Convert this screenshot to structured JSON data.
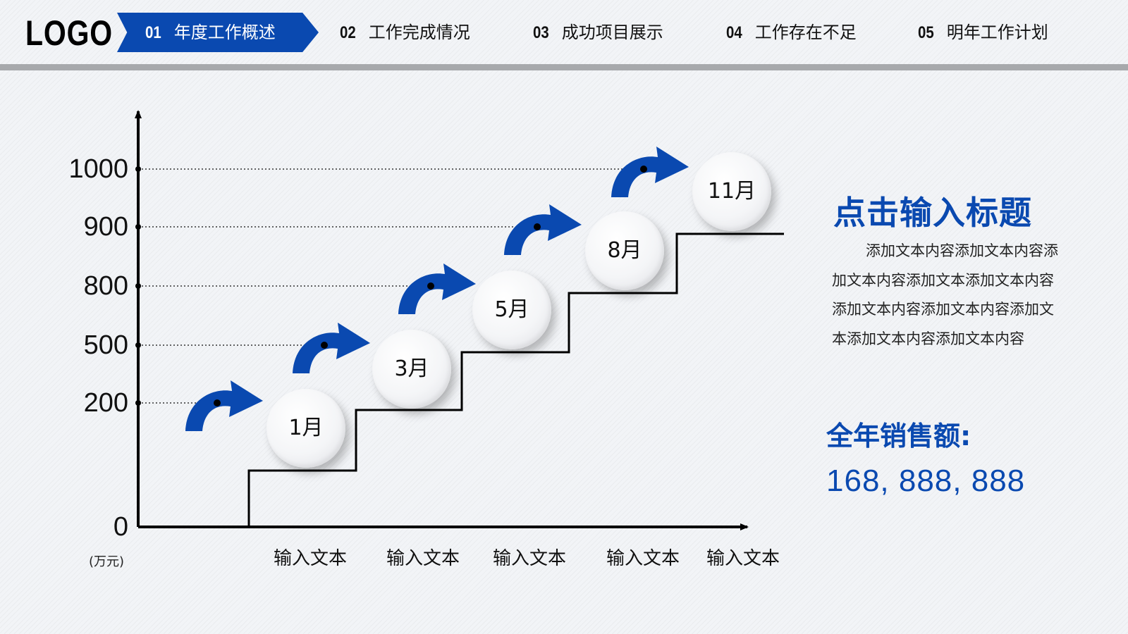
{
  "header": {
    "logo": "LOGO",
    "tabs": [
      {
        "num": "01",
        "label": "年度工作概述"
      },
      {
        "num": "02",
        "label": "工作完成情况"
      },
      {
        "num": "03",
        "label": "成功项目展示"
      },
      {
        "num": "04",
        "label": "工作存在不足"
      },
      {
        "num": "05",
        "label": "明年工作计划"
      }
    ]
  },
  "colors": {
    "accent": "#0a49b0",
    "rule": "#a7a9ac",
    "axis": "#000000"
  },
  "chart_data": {
    "type": "line",
    "title": "",
    "ylabel": "(万元)",
    "y_ticks": [
      "1000",
      "900",
      "800",
      "500",
      "200",
      "0"
    ],
    "categories": [
      "输入文本",
      "输入文本",
      "输入文本",
      "输入文本",
      "输入文本"
    ],
    "steps": [
      {
        "label": "1月",
        "value": 200
      },
      {
        "label": "3月",
        "value": 500
      },
      {
        "label": "5月",
        "value": 800
      },
      {
        "label": "8月",
        "value": 900
      },
      {
        "label": "11月",
        "value": 1000
      }
    ],
    "icons": [
      "curved-arrow-icon"
    ]
  },
  "panel": {
    "title": "点击输入标题",
    "body": "添加文本内容添加文本内容添加文本内容添加文本添加文本内容添加文本内容添加文本内容添加文本添加文本内容添加文本内容",
    "sales_label": "全年销售额:",
    "sales_value": "168, 888, 888"
  }
}
